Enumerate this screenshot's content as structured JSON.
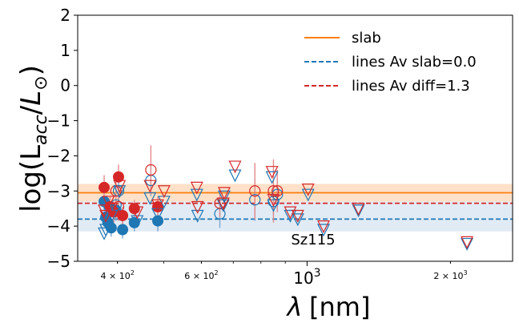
{
  "chart_data": {
    "type": "scatter",
    "title": "",
    "xlabel": "λ [nm]",
    "ylabel": "log(L_acc/L⊙)",
    "xscale": "log",
    "xlim": [
      330,
      2700
    ],
    "ylim": [
      -5,
      2
    ],
    "grid": false,
    "annotation": "Sz115",
    "y_ticks": [
      {
        "value": 2,
        "label": "2"
      },
      {
        "value": 1,
        "label": "1"
      },
      {
        "value": 0,
        "label": "0"
      },
      {
        "value": -1,
        "label": "−1"
      },
      {
        "value": -2,
        "label": "−2"
      },
      {
        "value": -3,
        "label": "−3"
      },
      {
        "value": -4,
        "label": "−4"
      },
      {
        "value": -5,
        "label": "−5"
      }
    ],
    "x_ticks": [
      {
        "value": 400,
        "label": "4 × 10^2",
        "base": "4 × 10",
        "exp": "2",
        "major": false
      },
      {
        "value": 600,
        "label": "6 × 10^2",
        "base": "6 × 10",
        "exp": "2",
        "major": false
      },
      {
        "value": 1000,
        "label": "10^3",
        "base": "10",
        "exp": "3",
        "major": true
      },
      {
        "value": 2000,
        "label": "2 × 10^3",
        "base": "2 × 10",
        "exp": "3",
        "major": false
      }
    ],
    "legend": {
      "position": "top-right",
      "entries": [
        {
          "label": "slab",
          "color": "#ff7f0e",
          "style": "solid"
        },
        {
          "label": "lines Av slab=0.0",
          "color": "#1f77b4",
          "style": "dashed"
        },
        {
          "label": "lines Av diff=1.3",
          "color": "#d62728",
          "style": "dashed"
        }
      ]
    },
    "hlines": [
      {
        "name": "slab",
        "y": -3.05,
        "band": [
          -3.3,
          -2.8
        ],
        "color": "#ff7f0e",
        "band_color": "#ffdcc0",
        "style": "solid"
      },
      {
        "name": "lines Av slab=0.0",
        "y": -3.8,
        "band": [
          -4.15,
          -3.3
        ],
        "color": "#1f77b4",
        "band_color": "#dce8f3",
        "style": "dashed"
      },
      {
        "name": "lines Av diff=1.3",
        "y": -3.35,
        "color": "#d62728",
        "style": "dashed"
      }
    ],
    "series": [
      {
        "name": "lines Av slab=0.0 detections",
        "marker": "circle-filled",
        "color": "#1f77b4",
        "points": [
          {
            "x": 375,
            "y": -3.3,
            "err": 0.3
          },
          {
            "x": 378,
            "y": -3.75,
            "err": 0.3
          },
          {
            "x": 382,
            "y": -3.9,
            "err": 0.25
          },
          {
            "x": 388,
            "y": -4.05,
            "err": 0.25
          },
          {
            "x": 397,
            "y": -3.55,
            "err": 0.3
          },
          {
            "x": 410,
            "y": -4.1,
            "err": 0.25
          },
          {
            "x": 434,
            "y": -3.9,
            "err": 0.25
          },
          {
            "x": 486,
            "y": -3.85,
            "err": 0.3
          }
        ]
      },
      {
        "name": "lines Av diff=1.3 detections",
        "marker": "circle-filled",
        "color": "#d62728",
        "points": [
          {
            "x": 375,
            "y": -2.9,
            "err": 0.35
          },
          {
            "x": 386,
            "y": -3.45,
            "err": 0.3
          },
          {
            "x": 393,
            "y": -3.6,
            "err": 0.3
          },
          {
            "x": 402,
            "y": -2.6,
            "err": 0.35
          },
          {
            "x": 410,
            "y": -3.7,
            "err": 0.25
          },
          {
            "x": 434,
            "y": -3.5,
            "err": 0.25
          },
          {
            "x": 486,
            "y": -3.45,
            "err": 0.3
          }
        ]
      },
      {
        "name": "lines Av slab=0.0 open",
        "marker": "circle-open",
        "color": "#1f77b4",
        "points": [
          {
            "x": 397,
            "y": -3.4,
            "err": 0.4
          },
          {
            "x": 402,
            "y": -3.0,
            "err": 0.4
          },
          {
            "x": 470,
            "y": -2.7,
            "err": 0.45
          },
          {
            "x": 656,
            "y": -3.65,
            "err": 0.4
          },
          {
            "x": 777,
            "y": -3.25,
            "err": 0.6
          },
          {
            "x": 850,
            "y": -3.3,
            "err": 0.4
          },
          {
            "x": 866,
            "y": -3.1,
            "err": 0.4
          }
        ]
      },
      {
        "name": "lines Av diff=1.3 open",
        "marker": "circle-open",
        "color": "#d62728",
        "points": [
          {
            "x": 397,
            "y": -3.0,
            "err": 0.4
          },
          {
            "x": 402,
            "y": -3.45,
            "err": 0.4
          },
          {
            "x": 470,
            "y": -2.4,
            "err": 0.7
          },
          {
            "x": 656,
            "y": -3.35,
            "err": 0.4
          },
          {
            "x": 777,
            "y": -3.0,
            "err": 0.8
          },
          {
            "x": 850,
            "y": -3.0,
            "err": 0.9
          },
          {
            "x": 866,
            "y": -3.0,
            "err": 0.6
          }
        ]
      },
      {
        "name": "lines Av slab=0.0 upper limits",
        "marker": "triangle-down",
        "color": "#1f77b4",
        "points": [
          {
            "x": 375,
            "y": -4.2
          },
          {
            "x": 378,
            "y": -4.1
          },
          {
            "x": 383,
            "y": -3.55
          },
          {
            "x": 389,
            "y": -3.7
          },
          {
            "x": 404,
            "y": -3.0
          },
          {
            "x": 440,
            "y": -3.85
          },
          {
            "x": 468,
            "y": -3.2
          },
          {
            "x": 486,
            "y": -3.65
          },
          {
            "x": 501,
            "y": -3.3
          },
          {
            "x": 587,
            "y": -3.1
          },
          {
            "x": 589,
            "y": -3.7
          },
          {
            "x": 667,
            "y": -3.4
          },
          {
            "x": 670,
            "y": -3.15
          },
          {
            "x": 706,
            "y": -2.55
          },
          {
            "x": 844,
            "y": -2.6
          },
          {
            "x": 850,
            "y": -3.4
          },
          {
            "x": 922,
            "y": -3.7
          },
          {
            "x": 956,
            "y": -3.8
          },
          {
            "x": 1005,
            "y": -3.1
          },
          {
            "x": 1083,
            "y": -4.1
          },
          {
            "x": 1282,
            "y": -3.55
          },
          {
            "x": 2166,
            "y": -4.5
          }
        ]
      },
      {
        "name": "lines Av diff=1.3 upper limits",
        "marker": "triangle-down",
        "color": "#d62728",
        "points": [
          {
            "x": 375,
            "y": -3.55
          },
          {
            "x": 378,
            "y": -3.7
          },
          {
            "x": 383,
            "y": -3.3
          },
          {
            "x": 389,
            "y": -3.5
          },
          {
            "x": 404,
            "y": -2.85
          },
          {
            "x": 440,
            "y": -3.6
          },
          {
            "x": 468,
            "y": -2.85
          },
          {
            "x": 486,
            "y": -3.4
          },
          {
            "x": 501,
            "y": -3.0
          },
          {
            "x": 587,
            "y": -2.9
          },
          {
            "x": 589,
            "y": -3.45
          },
          {
            "x": 667,
            "y": -3.35
          },
          {
            "x": 670,
            "y": -3.05
          },
          {
            "x": 706,
            "y": -2.3
          },
          {
            "x": 844,
            "y": -2.45
          },
          {
            "x": 850,
            "y": -3.25
          },
          {
            "x": 922,
            "y": -3.6
          },
          {
            "x": 956,
            "y": -3.7
          },
          {
            "x": 1005,
            "y": -2.95
          },
          {
            "x": 1083,
            "y": -4.0
          },
          {
            "x": 1282,
            "y": -3.5
          },
          {
            "x": 2166,
            "y": -4.45
          }
        ]
      }
    ]
  }
}
